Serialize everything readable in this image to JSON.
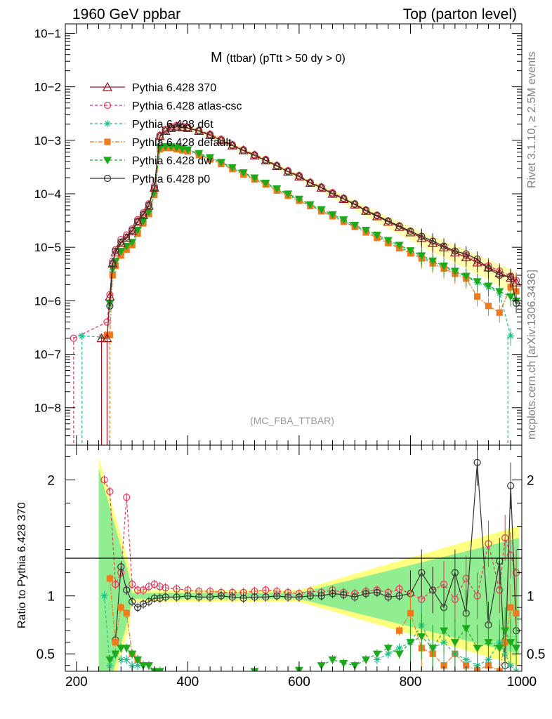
{
  "header": {
    "left": "1960 GeV ppbar",
    "right": "Top (parton level)"
  },
  "title_main": "M",
  "title_sub": "(ttbar) (pTtt > 50 dy > 0)",
  "analysis_id": "(MC_FBA_TTBAR)",
  "side_text_top": "Rivet 3.1.10, ≥ 2.5M events",
  "side_text_bottom": "mcplots.cern.ch [arXiv:1306.3436]",
  "ratio_ylabel": "Ratio to Pythia 6.428 370",
  "colors": {
    "p370": "#a0101e",
    "atlas": "#e8345a",
    "d6t": "#1fbf8c",
    "default": "#f07b1f",
    "dw": "#1caa1c",
    "p0": "#333333",
    "band_yellow": "#ffff80",
    "band_green": "#90ee90"
  },
  "chart_data": [
    {
      "type": "line",
      "log_y": true,
      "xlim": [
        180,
        1000
      ],
      "ylim": [
        2e-09,
        0.15
      ],
      "y_ticks": [
        "10−8",
        "10−7",
        "10−6",
        "10−5",
        "10−4",
        "10−3",
        "10−2",
        "10−1"
      ],
      "x": [
        195,
        210,
        245,
        255,
        260,
        265,
        270,
        280,
        290,
        300,
        310,
        320,
        330,
        340,
        350,
        360,
        370,
        380,
        390,
        400,
        420,
        440,
        460,
        480,
        500,
        520,
        540,
        560,
        580,
        600,
        620,
        640,
        660,
        680,
        700,
        720,
        740,
        760,
        780,
        800,
        820,
        840,
        860,
        880,
        900,
        920,
        940,
        960,
        980,
        990
      ],
      "series": [
        {
          "name": "Pythia 6.428 370",
          "key": "p370",
          "marker": "triangle",
          "dash": "none",
          "values": [
            null,
            null,
            2e-07,
            2e-07,
            1.2e-06,
            5e-06,
            8e-06,
            1.2e-05,
            1.5e-05,
            2e-05,
            3e-05,
            4e-05,
            6e-05,
            0.00013,
            0.0012,
            0.0015,
            0.0017,
            0.0018,
            0.00175,
            0.0017,
            0.0015,
            0.00125,
            0.001,
            0.0008,
            0.00065,
            0.00052,
            0.00042,
            0.00033,
            0.00026,
            0.00021,
            0.00016,
            0.00013,
            0.0001,
            8e-05,
            6.3e-05,
            4.8e-05,
            3.8e-05,
            3e-05,
            2.4e-05,
            1.9e-05,
            1.5e-05,
            1.2e-05,
            1e-05,
            8e-06,
            6.5e-06,
            5.2e-06,
            4.2e-06,
            3.3e-06,
            2.7e-06,
            2.2e-06
          ]
        },
        {
          "name": "Pythia 6.428 atlas-csc",
          "key": "atlas",
          "marker": "circle",
          "dash": "4,3",
          "values": [
            2e-07,
            null,
            null,
            4e-07,
            1.3e-06,
            5.5e-06,
            9e-06,
            1.4e-05,
            1.7e-05,
            2.2e-05,
            3.3e-05,
            4.4e-05,
            6.5e-05,
            0.00014,
            0.00125,
            0.0016,
            0.0018,
            0.0019,
            0.00185,
            0.00175,
            0.00155,
            0.0013,
            0.00105,
            0.00083,
            0.00067,
            0.00054,
            0.00044,
            0.00034,
            0.00027,
            0.00022,
            0.000165,
            0.000135,
            0.000105,
            8.3e-05,
            6.5e-05,
            5e-05,
            4e-05,
            3.1e-05,
            2.5e-05,
            2e-05,
            1.6e-05,
            1.3e-05,
            1.05e-05,
            8.5e-06,
            7e-06,
            5.5e-06,
            4.5e-06,
            3.6e-06,
            2.9e-06,
            2.4e-06
          ]
        },
        {
          "name": "Pythia 6.428 d6t",
          "key": "d6t",
          "marker": "star",
          "dash": "4,3",
          "values": [
            null,
            2.2e-07,
            2.1e-07,
            2.1e-07,
            8e-07,
            3.5e-06,
            5e-06,
            8e-06,
            1e-05,
            1.2e-05,
            2e-05,
            3e-05,
            4.5e-05,
            0.0001,
            0.0007,
            0.00075,
            0.00075,
            0.0007,
            0.00068,
            0.00065,
            0.00055,
            0.00046,
            0.00038,
            0.0003,
            0.00024,
            0.00019,
            0.000155,
            0.00012,
            9.6e-05,
            7.7e-05,
            6.1e-05,
            4.9e-05,
            3.9e-05,
            3.1e-05,
            2.5e-05,
            2e-05,
            1.6e-05,
            1.3e-05,
            1e-05,
            8.3e-06,
            6.6e-06,
            5.3e-06,
            4.3e-06,
            3.5e-06,
            2.8e-06,
            2.2e-06,
            1.8e-06,
            1.4e-06,
            2.2e-07,
            null
          ]
        },
        {
          "name": "Pythia 6.428 default",
          "key": "default",
          "marker": "square",
          "dash": "6,2,2,2",
          "values": [
            null,
            null,
            null,
            2.3e-07,
            2.3e-07,
            3e-06,
            4.5e-06,
            7e-06,
            9e-06,
            1.1e-05,
            1.8e-05,
            2.8e-05,
            4.2e-05,
            9.5e-05,
            0.00068,
            0.00072,
            0.00072,
            0.00068,
            0.00065,
            0.00062,
            0.00053,
            0.00044,
            0.00036,
            0.00029,
            0.00023,
            0.000185,
            0.00015,
            0.000115,
            9.2e-05,
            7.4e-05,
            5.9e-05,
            4.7e-05,
            3.8e-05,
            3e-05,
            2.4e-05,
            1.9e-05,
            1.5e-05,
            1.2e-05,
            9.6e-06,
            7.7e-06,
            6.2e-06,
            5e-06,
            4e-06,
            3.2e-06,
            2.6e-06,
            1.2e-06,
            8e-07,
            6e-07,
            1.8e-06,
            1.5e-06
          ]
        },
        {
          "name": "Pythia 6.428 dw",
          "key": "dw",
          "marker": "triangle-down",
          "dash": "4,3",
          "values": [
            null,
            null,
            null,
            null,
            9e-07,
            4e-06,
            5.5e-06,
            8.5e-06,
            1.05e-05,
            1.25e-05,
            2.1e-05,
            3.1e-05,
            4.6e-05,
            0.000105,
            0.00073,
            0.00077,
            0.00077,
            0.00073,
            0.0007,
            0.00067,
            0.00057,
            0.00048,
            0.00039,
            0.00031,
            0.00025,
            0.0002,
            0.00016,
            0.000125,
            0.0001,
            8e-05,
            6.3e-05,
            5.1e-05,
            4.1e-05,
            3.3e-05,
            2.6e-05,
            2.1e-05,
            1.7e-05,
            1.35e-05,
            1.1e-05,
            8.7e-06,
            7e-06,
            5.6e-06,
            4.5e-06,
            3.6e-06,
            2.9e-06,
            2.3e-06,
            1.9e-06,
            1.5e-06,
            1.2e-06,
            1e-06
          ]
        },
        {
          "name": "Pythia 6.428 p0",
          "key": "p0",
          "marker": "circle",
          "dash": "none",
          "values": [
            null,
            null,
            null,
            null,
            8e-07,
            5e-06,
            8.5e-06,
            1.25e-05,
            1.55e-05,
            2.05e-05,
            3.05e-05,
            4.1e-05,
            6.1e-05,
            0.00013,
            0.00118,
            0.0015,
            0.0017,
            0.00178,
            0.00174,
            0.00168,
            0.00149,
            0.00124,
            0.001,
            0.0008,
            0.00064,
            0.00052,
            0.00042,
            0.00033,
            0.00026,
            0.00021,
            0.00016,
            0.00013,
            0.0001,
            8.1e-05,
            6.4e-05,
            4.9e-05,
            3.9e-05,
            3.1e-05,
            2.5e-05,
            2e-05,
            1.6e-05,
            1.3e-05,
            1.05e-05,
            8.5e-06,
            7.5e-06,
            6e-06,
            4e-06,
            3e-06,
            2.8e-06,
            9e-07
          ]
        }
      ]
    },
    {
      "type": "line",
      "role": "ratio",
      "ylabel": "Ratio to Pythia 6.428 370",
      "xlim": [
        180,
        1000
      ],
      "ylim": [
        0.35,
        2.3
      ],
      "x_ticks": [
        200,
        400,
        600,
        800,
        1000
      ],
      "y_ticks": [
        0.5,
        1,
        2
      ],
      "x": [
        250,
        260,
        270,
        280,
        290,
        300,
        310,
        320,
        330,
        340,
        350,
        360,
        380,
        400,
        420,
        440,
        460,
        480,
        500,
        520,
        540,
        560,
        580,
        600,
        620,
        640,
        660,
        680,
        700,
        720,
        740,
        760,
        780,
        800,
        820,
        840,
        860,
        880,
        900,
        920,
        940,
        960,
        970,
        980,
        990
      ],
      "series": [
        {
          "name": "Pythia 6.428 atlas-csc",
          "key": "atlas",
          "values": [
            2.0,
            1.9,
            1.1,
            1.2,
            1.85,
            1.1,
            1.05,
            1.05,
            1.08,
            1.1,
            1.08,
            1.07,
            1.06,
            1.05,
            1.04,
            1.04,
            1.03,
            1.03,
            1.03,
            1.04,
            1.05,
            1.04,
            1.03,
            1.02,
            1.04,
            1.03,
            1.05,
            1.03,
            1.02,
            1.04,
            1.05,
            1.03,
            1.06,
            1.02,
            0.97,
            1.05,
            1.1,
            0.97,
            1.15,
            1.0,
            1.45,
            1.05,
            1.5,
            1.35,
            1.2
          ]
        },
        {
          "name": "Pythia 6.428 p0",
          "key": "p0",
          "values": [
            null,
            null,
            0.62,
            1.25,
            1.05,
            0.95,
            0.9,
            0.93,
            0.95,
            0.98,
            0.98,
            0.99,
            0.99,
            1.0,
            0.99,
            0.99,
            1.0,
            0.99,
            0.98,
            0.99,
            0.99,
            1.0,
            0.99,
            0.99,
            1.0,
            1.0,
            1.02,
            1.01,
            0.99,
            1.02,
            1.03,
            0.99,
            1.0,
            1.02,
            1.2,
            1.05,
            0.9,
            1.2,
            0.85,
            2.15,
            0.75,
            1.3,
            0.4,
            1.95,
            0.7
          ]
        },
        {
          "name": "Pythia 6.428 default",
          "key": "default",
          "values": [
            null,
            1.15,
            0.6,
            0.9,
            0.85,
            0.5,
            0.45,
            null,
            null,
            null,
            null,
            null,
            null,
            null,
            null,
            null,
            null,
            null,
            null,
            null,
            null,
            null,
            null,
            null,
            null,
            null,
            null,
            null,
            null,
            null,
            null,
            null,
            0.7,
            0.85,
            0.55,
            0.5,
            0.4,
            0.5,
            0.4,
            0.36,
            0.4,
            0.35,
            0.6,
            0.9,
            0.85
          ]
        },
        {
          "name": "Pythia 6.428 d6t",
          "key": "d6t",
          "values": [
            1.0,
            0.4,
            0.5,
            0.45,
            0.45,
            0.4,
            0.4,
            null,
            null,
            null,
            null,
            null,
            null,
            null,
            null,
            null,
            null,
            null,
            null,
            null,
            null,
            null,
            null,
            null,
            null,
            null,
            null,
            null,
            null,
            null,
            0.45,
            0.5,
            0.55,
            0.6,
            0.75,
            0.55,
            0.6,
            0.5,
            0.45,
            0.4,
            0.45,
            0.6,
            0.5,
            0.4,
            0.35
          ]
        },
        {
          "name": "Pythia 6.428 dw",
          "key": "dw",
          "values": [
            null,
            0.45,
            0.5,
            0.55,
            0.55,
            0.5,
            0.45,
            0.4,
            0.4,
            0.35,
            0.35,
            null,
            null,
            null,
            null,
            null,
            null,
            null,
            null,
            0.35,
            null,
            null,
            null,
            0.36,
            null,
            0.4,
            0.45,
            0.42,
            0.4,
            0.45,
            0.5,
            0.55,
            0.5,
            0.6,
            0.65,
            0.55,
            0.7,
            0.6,
            0.72,
            0.55,
            0.6,
            0.55,
            0.7,
            0.6,
            0.55
          ]
        }
      ]
    }
  ]
}
